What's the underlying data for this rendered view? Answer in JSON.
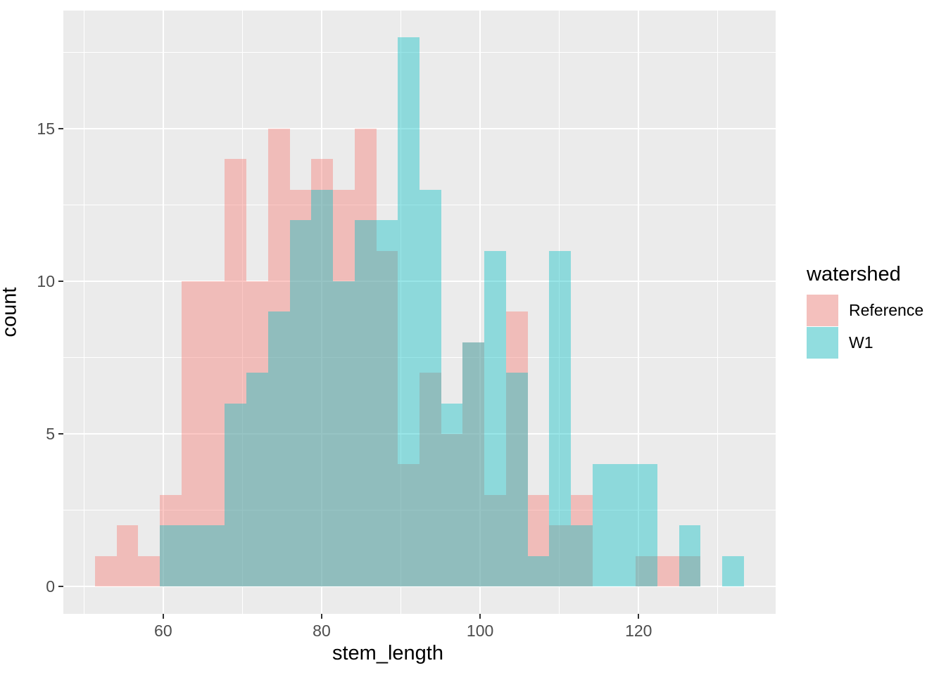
{
  "figure": {
    "background": "#FFFFFF",
    "panel_background": "#EBEBEB",
    "gridline_color": "#FFFFFF",
    "tick_mark_color": "#333333",
    "tick_label_color": "#4D4D4D"
  },
  "axes": {
    "x": {
      "title": "stem_length",
      "tick_labels": [
        "60",
        "80",
        "100",
        "120"
      ]
    },
    "y": {
      "title": "count",
      "tick_labels": [
        "0",
        "5",
        "10",
        "15"
      ]
    }
  },
  "legend": {
    "title": "watershed",
    "items": [
      {
        "label": "Reference",
        "color": "#F8766D"
      },
      {
        "label": "W1",
        "color": "#00BFC4"
      }
    ]
  },
  "chart_data": {
    "type": "histogram",
    "title": "",
    "xlabel": "stem_length",
    "ylabel": "count",
    "legend_title": "watershed",
    "legend_position": "right",
    "grid": true,
    "fill_alpha": 0.4,
    "bin_start": 51.4,
    "bin_width": 2.73,
    "n_bins": 30,
    "xlim": [
      47.4,
      137.3
    ],
    "ylim": [
      -0.9,
      18.87
    ],
    "x_ticks": [
      60,
      80,
      100,
      120
    ],
    "x_minor_ticks": [
      50,
      70,
      90,
      110,
      130
    ],
    "y_ticks": [
      0,
      5,
      10,
      15
    ],
    "y_minor_ticks": [
      2.5,
      7.5,
      12.5,
      17.5
    ],
    "series": [
      {
        "name": "Reference",
        "color": "#F8766D",
        "counts": [
          1,
          2,
          1,
          3,
          10,
          10,
          14,
          10,
          15,
          13,
          14,
          13,
          15,
          11,
          4,
          7,
          5,
          8,
          3,
          9,
          3,
          2,
          3,
          0,
          0,
          1,
          1,
          1,
          0,
          0
        ]
      },
      {
        "name": "W1",
        "color": "#00BFC4",
        "counts": [
          0,
          0,
          0,
          2,
          2,
          2,
          6,
          7,
          9,
          12,
          13,
          10,
          12,
          12,
          18,
          13,
          6,
          8,
          11,
          7,
          1,
          11,
          2,
          4,
          4,
          4,
          0,
          2,
          0,
          1
        ]
      }
    ]
  }
}
